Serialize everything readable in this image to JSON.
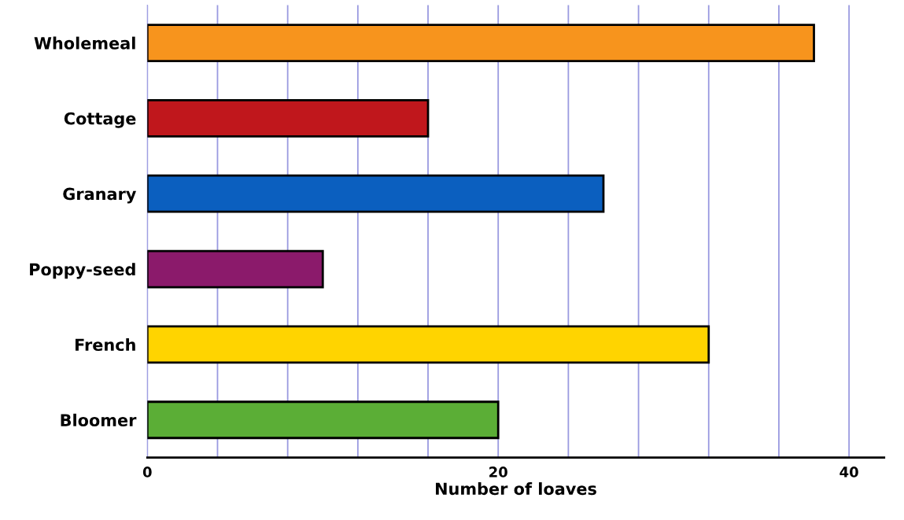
{
  "chart_data": {
    "type": "bar",
    "orientation": "horizontal",
    "xlabel": "Number of loaves",
    "categories": [
      "Wholemeal",
      "Cottage",
      "Granary",
      "Poppy-seed",
      "French",
      "Bloomer"
    ],
    "values": [
      38,
      16,
      26,
      10,
      32,
      20
    ],
    "colors": [
      "#f7941d",
      "#c0171c",
      "#0b5fbf",
      "#8b1a6b",
      "#ffd400",
      "#5bae36"
    ],
    "xlim": [
      0,
      42
    ],
    "xticks": [
      0,
      {
        "value": 4,
        "label": null
      },
      {
        "value": 8,
        "label": null
      },
      {
        "value": 12,
        "label": null
      },
      {
        "value": 16,
        "label": null
      },
      20,
      {
        "value": 24,
        "label": null
      },
      {
        "value": 28,
        "label": null
      },
      {
        "value": 32,
        "label": null
      },
      {
        "value": 36,
        "label": null
      },
      40
    ],
    "grid": "x"
  }
}
